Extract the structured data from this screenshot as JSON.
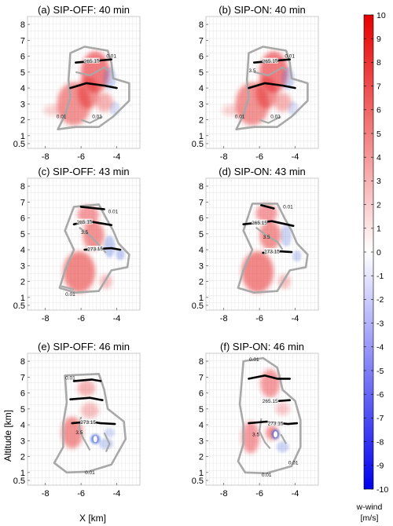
{
  "chart_data": {
    "type": "heatmap",
    "variable": "w-wind",
    "colorbar": {
      "label_line1": "w-wind",
      "label_line2": "[m/s]",
      "range": [
        -10,
        10
      ],
      "ticks": [
        "10",
        "9",
        "8",
        "7",
        "6",
        "5",
        "4",
        "3",
        "2",
        "1",
        "0",
        "-1",
        "-2",
        "-3",
        "-4",
        "-5",
        "-6",
        "-7",
        "-8",
        "-9",
        "-10"
      ],
      "colors": {
        "positive": "#e60000",
        "zero": "#ffffff",
        "negative": "#0000ee"
      }
    },
    "x_axis": {
      "label": "X [km]",
      "range": [
        -9,
        -2.7
      ],
      "ticks": [
        "-8",
        "-6",
        "-4"
      ]
    },
    "y_axis": {
      "label": "Altitude [km]",
      "range": [
        0.2,
        8.5
      ],
      "ticks": [
        "0.5",
        "1",
        "2",
        "3",
        "4",
        "5",
        "6",
        "7",
        "8"
      ]
    },
    "grid": true,
    "panels": [
      {
        "title": "(a) SIP-OFF: 40 min",
        "contour_labels": [
          "265.15",
          "0.01",
          "0.01",
          "0.01"
        ]
      },
      {
        "title": "(b) SIP-ON: 40 min",
        "contour_labels": [
          "265.15",
          "0.01",
          "0.01",
          "0.01",
          "3.5"
        ]
      },
      {
        "title": "(c) SIP-OFF: 43 min",
        "contour_labels": [
          "265.15",
          "0.01",
          "0.01",
          "3.5",
          "273.15"
        ]
      },
      {
        "title": "(d) SIP-ON: 43 min",
        "contour_labels": [
          "265.15",
          "0.01",
          "3.5",
          "273.15"
        ]
      },
      {
        "title": "(e) SIP-OFF: 46 min",
        "contour_labels": [
          "0.01",
          "273.15",
          "3.5",
          "0.01"
        ]
      },
      {
        "title": "(f) SIP-ON: 46 min",
        "contour_labels": [
          "0.01",
          "265.15",
          "273.15",
          "3.5",
          "0.01",
          "0.01"
        ]
      }
    ]
  }
}
